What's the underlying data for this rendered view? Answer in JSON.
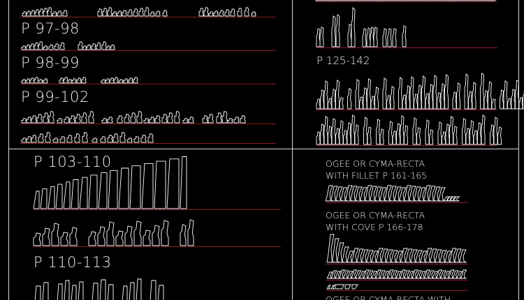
{
  "drawing": {
    "colors": {
      "background": "#000000",
      "border": "#d8d8d8",
      "profile_outline": "#ffffff",
      "baseline": "#8a1c24"
    },
    "left_top_panel": {
      "labels": [
        "P 97-98",
        "P 98-99",
        "P 99-102"
      ]
    },
    "left_bottom_panel": {
      "labels": [
        "P 103-110",
        "P 110-113"
      ]
    },
    "right_top_panel": {
      "labels": [
        "P 125-142"
      ]
    },
    "right_bottom_panel": {
      "labels": [
        "OGEE OR CYMA-RECTA",
        "WITH FILLET  P 161-165",
        "OGEE OR CYMA-RECTA",
        "WITH COVE  P 166-178",
        "OGEE OR CYMA-RECTA WITH"
      ]
    }
  }
}
